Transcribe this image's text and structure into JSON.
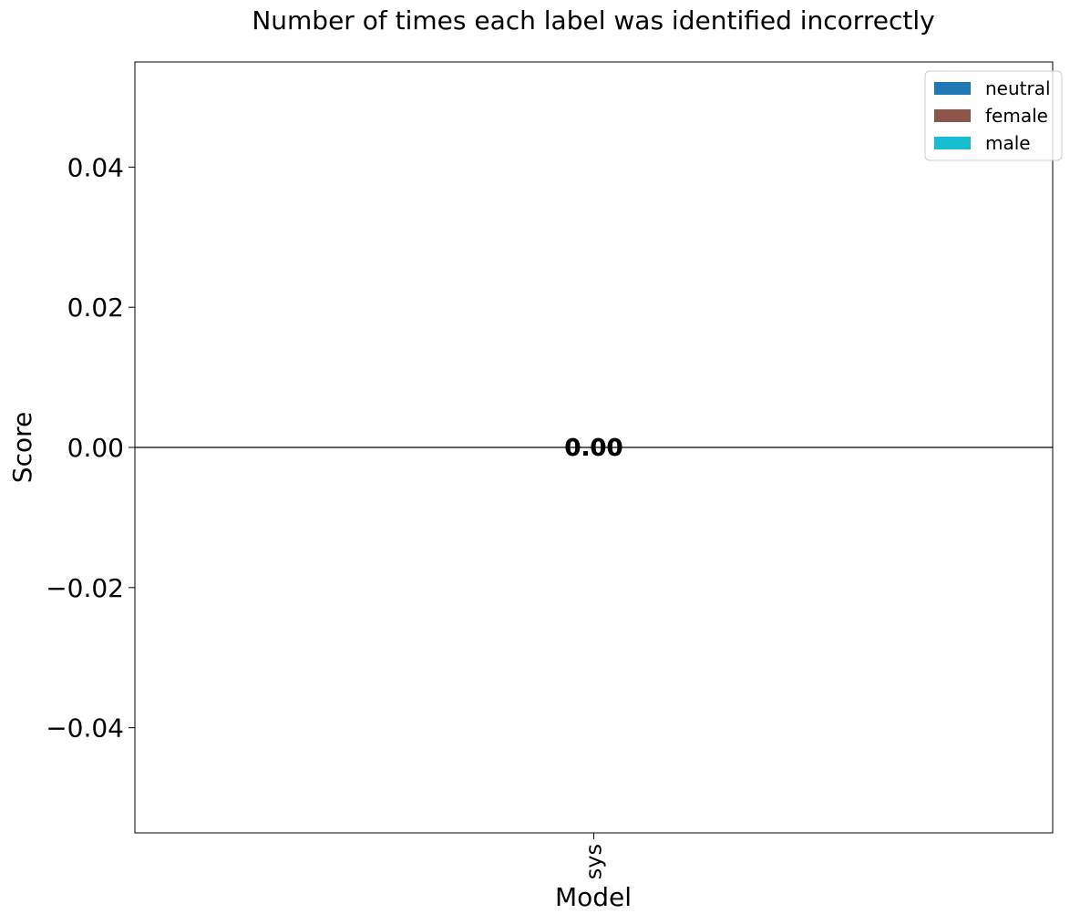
{
  "chart_data": {
    "type": "bar",
    "title": "Number of times each label was identified incorrectly",
    "xlabel": "Model",
    "ylabel": "Score",
    "categories": [
      "sys"
    ],
    "series": [
      {
        "name": "neutral",
        "values": [
          0.0
        ],
        "color": "#1f77b4"
      },
      {
        "name": "female",
        "values": [
          0.0
        ],
        "color": "#8c564b"
      },
      {
        "name": "male",
        "values": [
          0.0
        ],
        "color": "#17becf"
      }
    ],
    "data_labels": [
      "0.00",
      "0.00",
      "0.00"
    ],
    "ylim": [
      -0.055,
      0.055
    ],
    "yticks": [
      -0.04,
      -0.02,
      0.0,
      0.02,
      0.04
    ],
    "ytick_labels": [
      "−0.04",
      "−0.02",
      "0.00",
      "0.02",
      "0.04"
    ],
    "legend_position": "top-right",
    "grid": false
  }
}
